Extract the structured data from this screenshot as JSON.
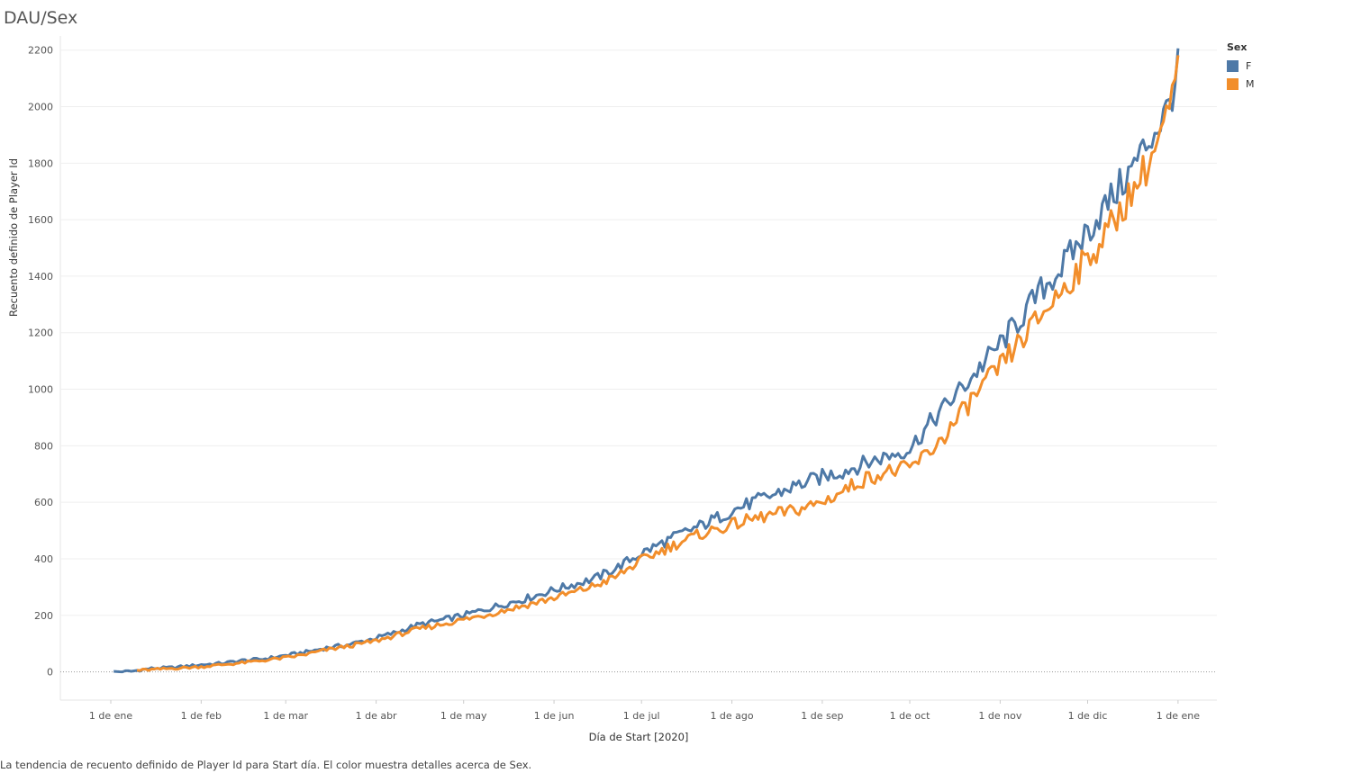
{
  "title": "DAU/Sex",
  "caption": "La tendencia de recuento definido de Player Id para Start día.  El color muestra detalles acerca de Sex.",
  "legend": {
    "title": "Sex",
    "items": [
      {
        "label": "F",
        "color": "#4e79a7"
      },
      {
        "label": "M",
        "color": "#f28e2b"
      }
    ]
  },
  "chart_data": {
    "type": "line",
    "xlabel": "Día de Start [2020]",
    "ylabel": "Recuento definido de Player Id",
    "ylim": [
      -100,
      2250
    ],
    "xlim": [
      "2020-01-01",
      "2021-01-10"
    ],
    "grid": true,
    "legend_position": "top-right",
    "y_ticks": [
      0,
      200,
      400,
      600,
      800,
      1000,
      1200,
      1400,
      1600,
      1800,
      2000,
      2200
    ],
    "x_ticks": [
      {
        "date": "2020-01-01",
        "label": "1 de ene"
      },
      {
        "date": "2020-02-01",
        "label": "1 de feb"
      },
      {
        "date": "2020-03-01",
        "label": "1 de mar"
      },
      {
        "date": "2020-04-01",
        "label": "1 de abr"
      },
      {
        "date": "2020-05-01",
        "label": "1 de may"
      },
      {
        "date": "2020-06-01",
        "label": "1 de jun"
      },
      {
        "date": "2020-07-01",
        "label": "1 de jul"
      },
      {
        "date": "2020-08-01",
        "label": "1 de ago"
      },
      {
        "date": "2020-09-01",
        "label": "1 de sep"
      },
      {
        "date": "2020-10-01",
        "label": "1 de oct"
      },
      {
        "date": "2020-11-01",
        "label": "1 de nov"
      },
      {
        "date": "2020-12-01",
        "label": "1 de dic"
      },
      {
        "date": "2021-01-01",
        "label": "1 de ene"
      }
    ],
    "series": [
      {
        "name": "F",
        "color": "#4e79a7",
        "points": [
          [
            "2020-01-02",
            0
          ],
          [
            "2020-01-08",
            2
          ],
          [
            "2020-01-15",
            12
          ],
          [
            "2020-01-22",
            15
          ],
          [
            "2020-02-01",
            25
          ],
          [
            "2020-02-08",
            30
          ],
          [
            "2020-02-15",
            40
          ],
          [
            "2020-02-22",
            45
          ],
          [
            "2020-03-01",
            58
          ],
          [
            "2020-03-08",
            70
          ],
          [
            "2020-03-15",
            85
          ],
          [
            "2020-03-22",
            95
          ],
          [
            "2020-04-01",
            120
          ],
          [
            "2020-04-08",
            140
          ],
          [
            "2020-04-15",
            165
          ],
          [
            "2020-04-22",
            180
          ],
          [
            "2020-05-01",
            200
          ],
          [
            "2020-05-08",
            220
          ],
          [
            "2020-05-15",
            240
          ],
          [
            "2020-05-22",
            258
          ],
          [
            "2020-06-01",
            290
          ],
          [
            "2020-06-08",
            310
          ],
          [
            "2020-06-15",
            330
          ],
          [
            "2020-06-22",
            365
          ],
          [
            "2020-07-01",
            420
          ],
          [
            "2020-07-08",
            455
          ],
          [
            "2020-07-15",
            490
          ],
          [
            "2020-07-22",
            520
          ],
          [
            "2020-08-01",
            570
          ],
          [
            "2020-08-08",
            600
          ],
          [
            "2020-08-15",
            625
          ],
          [
            "2020-08-22",
            655
          ],
          [
            "2020-09-01",
            690
          ],
          [
            "2020-09-08",
            710
          ],
          [
            "2020-09-15",
            735
          ],
          [
            "2020-09-22",
            760
          ],
          [
            "2020-10-01",
            790
          ],
          [
            "2020-10-08",
            880
          ],
          [
            "2020-10-15",
            960
          ],
          [
            "2020-10-22",
            1040
          ],
          [
            "2020-11-01",
            1160
          ],
          [
            "2020-11-08",
            1250
          ],
          [
            "2020-11-15",
            1350
          ],
          [
            "2020-11-22",
            1430
          ],
          [
            "2020-12-01",
            1560
          ],
          [
            "2020-12-08",
            1660
          ],
          [
            "2020-12-15",
            1760
          ],
          [
            "2020-12-22",
            1880
          ],
          [
            "2020-12-28",
            1980
          ],
          [
            "2021-01-01",
            2130
          ]
        ]
      },
      {
        "name": "M",
        "color": "#f28e2b",
        "points": [
          [
            "2020-01-10",
            5
          ],
          [
            "2020-01-15",
            8
          ],
          [
            "2020-01-22",
            12
          ],
          [
            "2020-02-01",
            18
          ],
          [
            "2020-02-08",
            25
          ],
          [
            "2020-02-15",
            32
          ],
          [
            "2020-02-22",
            40
          ],
          [
            "2020-03-01",
            50
          ],
          [
            "2020-03-08",
            62
          ],
          [
            "2020-03-15",
            78
          ],
          [
            "2020-03-22",
            90
          ],
          [
            "2020-04-01",
            110
          ],
          [
            "2020-04-08",
            130
          ],
          [
            "2020-04-15",
            150
          ],
          [
            "2020-04-22",
            165
          ],
          [
            "2020-05-01",
            185
          ],
          [
            "2020-05-08",
            200
          ],
          [
            "2020-05-15",
            218
          ],
          [
            "2020-05-22",
            235
          ],
          [
            "2020-06-01",
            262
          ],
          [
            "2020-06-08",
            282
          ],
          [
            "2020-06-15",
            305
          ],
          [
            "2020-06-22",
            335
          ],
          [
            "2020-07-01",
            395
          ],
          [
            "2020-07-08",
            430
          ],
          [
            "2020-07-15",
            462
          ],
          [
            "2020-07-22",
            490
          ],
          [
            "2020-08-01",
            520
          ],
          [
            "2020-08-08",
            540
          ],
          [
            "2020-08-15",
            556
          ],
          [
            "2020-08-22",
            570
          ],
          [
            "2020-09-01",
            600
          ],
          [
            "2020-09-08",
            640
          ],
          [
            "2020-09-15",
            680
          ],
          [
            "2020-09-22",
            705
          ],
          [
            "2020-10-01",
            720
          ],
          [
            "2020-10-08",
            780
          ],
          [
            "2020-10-15",
            860
          ],
          [
            "2020-10-22",
            960
          ],
          [
            "2020-11-01",
            1080
          ],
          [
            "2020-11-08",
            1170
          ],
          [
            "2020-11-15",
            1260
          ],
          [
            "2020-11-22",
            1350
          ],
          [
            "2020-12-01",
            1460
          ],
          [
            "2020-12-08",
            1560
          ],
          [
            "2020-12-15",
            1680
          ],
          [
            "2020-12-22",
            1800
          ],
          [
            "2020-12-28",
            1950
          ],
          [
            "2021-01-01",
            2110
          ]
        ]
      }
    ]
  }
}
